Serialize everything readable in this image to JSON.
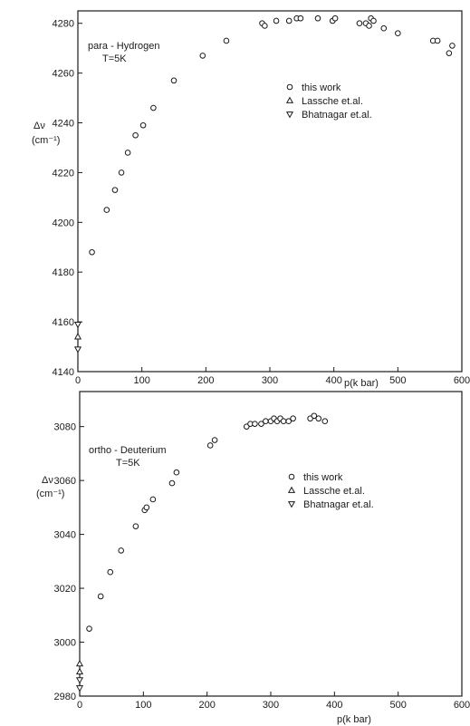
{
  "chart_data": [
    {
      "type": "scatter",
      "annotation": [
        "para - Hydrogen",
        "T=5K"
      ],
      "ylabel": [
        "Δν",
        "(cm⁻¹)"
      ],
      "xlabel": "p(k bar)",
      "xlim": [
        0,
        600
      ],
      "ylim": [
        4140,
        4285
      ],
      "x_ticks": [
        "0",
        "100",
        "200",
        "300",
        "400",
        "500",
        "600"
      ],
      "y_ticks": [
        "4140",
        "4160",
        "4180",
        "4200",
        "4220",
        "4240",
        "4260",
        "4280"
      ],
      "legend_position": "right",
      "series": [
        {
          "name": "this work",
          "marker": "circle",
          "points": [
            [
              22,
              4188
            ],
            [
              45,
              4205
            ],
            [
              58,
              4213
            ],
            [
              68,
              4220
            ],
            [
              78,
              4228
            ],
            [
              90,
              4235
            ],
            [
              102,
              4239
            ],
            [
              118,
              4246
            ],
            [
              150,
              4257
            ],
            [
              195,
              4267
            ],
            [
              232,
              4273
            ],
            [
              288,
              4280
            ],
            [
              292,
              4279
            ],
            [
              310,
              4281
            ],
            [
              330,
              4281
            ],
            [
              342,
              4282
            ],
            [
              348,
              4282
            ],
            [
              375,
              4282
            ],
            [
              398,
              4281
            ],
            [
              402,
              4282
            ],
            [
              440,
              4280
            ],
            [
              450,
              4280
            ],
            [
              455,
              4279
            ],
            [
              458,
              4282
            ],
            [
              462,
              4281
            ],
            [
              478,
              4278
            ],
            [
              500,
              4276
            ],
            [
              555,
              4273
            ],
            [
              562,
              4273
            ],
            [
              580,
              4268
            ],
            [
              585,
              4271
            ]
          ]
        },
        {
          "name": "Lassche et.al.",
          "marker": "triangle-up",
          "points": [
            [
              0,
              4154
            ]
          ]
        },
        {
          "name": "Bhatnagar et.al.",
          "marker": "triangle-down",
          "points": [
            [
              0,
              4149
            ],
            [
              0,
              4159
            ]
          ]
        }
      ]
    },
    {
      "type": "scatter",
      "annotation": [
        "ortho - Deuterium",
        "T=5K"
      ],
      "ylabel": [
        "Δν",
        "(cm⁻¹)"
      ],
      "xlabel": "p(k bar)",
      "xlim": [
        0,
        600
      ],
      "ylim": [
        2980,
        3093
      ],
      "x_ticks": [
        "0",
        "100",
        "200",
        "300",
        "400",
        "500",
        "600"
      ],
      "y_ticks": [
        "2980",
        "3000",
        "3020",
        "3040",
        "3060",
        "3080"
      ],
      "legend_position": "right",
      "series": [
        {
          "name": "this work",
          "marker": "circle",
          "points": [
            [
              15,
              3005
            ],
            [
              33,
              3017
            ],
            [
              48,
              3026
            ],
            [
              65,
              3034
            ],
            [
              88,
              3043
            ],
            [
              102,
              3049
            ],
            [
              105,
              3050
            ],
            [
              115,
              3053
            ],
            [
              145,
              3059
            ],
            [
              152,
              3063
            ],
            [
              205,
              3073
            ],
            [
              212,
              3075
            ],
            [
              262,
              3080
            ],
            [
              268,
              3081
            ],
            [
              275,
              3081
            ],
            [
              285,
              3081
            ],
            [
              292,
              3082
            ],
            [
              300,
              3082
            ],
            [
              305,
              3083
            ],
            [
              310,
              3082
            ],
            [
              315,
              3083
            ],
            [
              320,
              3082
            ],
            [
              328,
              3082
            ],
            [
              335,
              3083
            ],
            [
              362,
              3083
            ],
            [
              368,
              3084
            ],
            [
              375,
              3083
            ],
            [
              385,
              3082
            ]
          ]
        },
        {
          "name": "Lassche et.al.",
          "marker": "triangle-up",
          "points": [
            [
              0,
              2992
            ],
            [
              0,
              2989
            ]
          ]
        },
        {
          "name": "Bhatnagar et.al.",
          "marker": "triangle-down",
          "points": [
            [
              0,
              2986
            ],
            [
              0,
              2983
            ]
          ]
        }
      ]
    }
  ]
}
